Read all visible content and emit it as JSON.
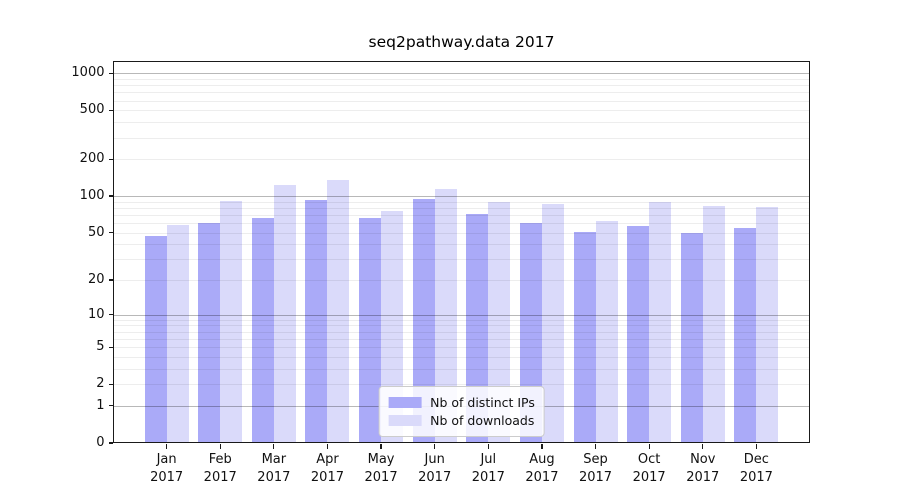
{
  "title": "seq2pathway.data 2017",
  "colors": {
    "ips": "#AAAAF8",
    "downloads": "#DADAFA",
    "major_grid": "rgba(0,0,0,0.28)",
    "minor_grid": "rgba(0,0,0,0.07)",
    "axis": "#1a1a1a",
    "background": "#ffffff"
  },
  "legend": {
    "items": [
      {
        "label": "Nb of distinct IPs",
        "color_key": "ips"
      },
      {
        "label": "Nb of downloads",
        "color_key": "downloads"
      }
    ]
  },
  "y_axis": {
    "scale": "log1p",
    "tick_values": [
      0,
      1,
      2,
      5,
      10,
      20,
      50,
      100,
      200,
      500,
      1000
    ],
    "tick_labels": [
      "0",
      "1",
      "2",
      "5",
      "10",
      "20",
      "50",
      "100",
      "200",
      "500",
      "1000"
    ],
    "major_gridlines": [
      1,
      10,
      100,
      1000
    ],
    "minor_gridlines": [
      2,
      3,
      4,
      5,
      6,
      7,
      8,
      9,
      20,
      30,
      40,
      50,
      60,
      70,
      80,
      90,
      200,
      300,
      400,
      500,
      600,
      700,
      800,
      900
    ]
  },
  "x_axis": {
    "months": [
      "Jan",
      "Feb",
      "Mar",
      "Apr",
      "May",
      "Jun",
      "Jul",
      "Aug",
      "Sep",
      "Oct",
      "Nov",
      "Dec"
    ],
    "year": "2017"
  },
  "chart_data": {
    "type": "bar",
    "title": "seq2pathway.data 2017",
    "categories": [
      "Jan 2017",
      "Feb 2017",
      "Mar 2017",
      "Apr 2017",
      "May 2017",
      "Jun 2017",
      "Jul 2017",
      "Aug 2017",
      "Sep 2017",
      "Oct 2017",
      "Nov 2017",
      "Dec 2017"
    ],
    "series": [
      {
        "name": "Nb of distinct IPs",
        "values": [
          47,
          60,
          66,
          92,
          66,
          94,
          71,
          60,
          51,
          57,
          50,
          55
        ]
      },
      {
        "name": "Nb of downloads",
        "values": [
          58,
          91,
          122,
          135,
          75,
          115,
          89,
          86,
          62,
          89,
          83,
          82
        ]
      }
    ],
    "yscale": "log1p",
    "yticks": [
      0,
      1,
      2,
      5,
      10,
      20,
      50,
      100,
      200,
      500,
      1000
    ],
    "ylim": [
      0,
      1258
    ],
    "xlabel": "",
    "ylabel": "",
    "grid": "horizontal",
    "legend_position": "lower center"
  }
}
